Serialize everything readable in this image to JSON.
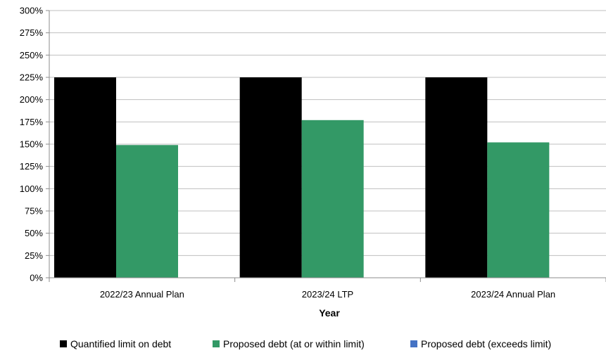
{
  "chart_data": {
    "type": "bar",
    "categories": [
      "2022/23 Annual Plan",
      "2023/24 LTP",
      "2023/24 Annual Plan"
    ],
    "series": [
      {
        "name": "Quantified limit on debt",
        "color": "#000000",
        "values": [
          225,
          225,
          225
        ]
      },
      {
        "name": "Proposed debt (at or within limit)",
        "color": "#339966",
        "values": [
          149,
          177,
          152
        ]
      },
      {
        "name": "Proposed debt (exceeds limit)",
        "color": "#4472C4",
        "values": [
          0,
          0,
          0
        ]
      }
    ],
    "xlabel": "Year",
    "ylabel": "",
    "ylim": [
      0,
      300
    ],
    "yticks": [
      0,
      25,
      50,
      75,
      100,
      125,
      150,
      175,
      200,
      225,
      250,
      275,
      300
    ],
    "ytick_labels": [
      "0%",
      "25%",
      "50%",
      "75%",
      "100%",
      "125%",
      "150%",
      "175%",
      "200%",
      "225%",
      "250%",
      "275%",
      "300%"
    ],
    "grid": true,
    "legend_position": "bottom"
  }
}
